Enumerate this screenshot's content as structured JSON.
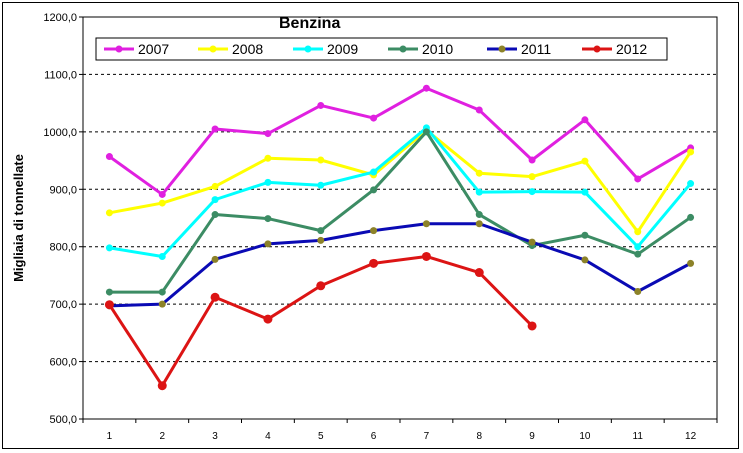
{
  "chart_data": {
    "type": "line",
    "title": "Benzina",
    "ylabel": "Migliaia di tonnellate",
    "xlabel": "",
    "x": [
      1,
      2,
      3,
      4,
      5,
      6,
      7,
      8,
      9,
      10,
      11,
      12
    ],
    "x_tick_labels": [
      "1",
      "2",
      "3",
      "4",
      "5",
      "6",
      "7",
      "8",
      "9",
      "10",
      "11",
      "12"
    ],
    "ylim": [
      500,
      1200
    ],
    "y_tick_labels": [
      "500,0",
      "600,0",
      "700,0",
      "800,0",
      "900,0",
      "1000,0",
      "1100,0",
      "1200,0"
    ],
    "grid": "horizontal dashed",
    "legend": "top",
    "series": [
      {
        "name": "2007",
        "color": "#e020e0",
        "values": [
          957,
          891,
          1005,
          997,
          1046,
          1024,
          1076,
          1038,
          951,
          1021,
          918,
          972
        ]
      },
      {
        "name": "2008",
        "color": "#ffff00",
        "values": [
          859,
          876,
          905,
          954,
          951,
          925,
          1003,
          928,
          922,
          949,
          826,
          965
        ]
      },
      {
        "name": "2009",
        "color": "#00ffff",
        "values": [
          798,
          783,
          882,
          912,
          907,
          930,
          1007,
          895,
          896,
          895,
          800,
          910
        ]
      },
      {
        "name": "2010",
        "color": "#3c8c64",
        "values": [
          721,
          721,
          856,
          849,
          828,
          899,
          1000,
          856,
          802,
          820,
          787,
          851
        ]
      },
      {
        "name": "2011",
        "color": "#0a0ab4",
        "values": [
          697,
          700,
          778,
          805,
          811,
          828,
          840,
          840,
          808,
          777,
          722,
          771
        ]
      },
      {
        "name": "2012",
        "color": "#dc1414",
        "values": [
          699,
          558,
          712,
          674,
          732,
          771,
          783,
          755,
          662,
          null,
          null,
          null
        ]
      }
    ],
    "marker_colors": {
      "2011": "#8c8228"
    }
  }
}
